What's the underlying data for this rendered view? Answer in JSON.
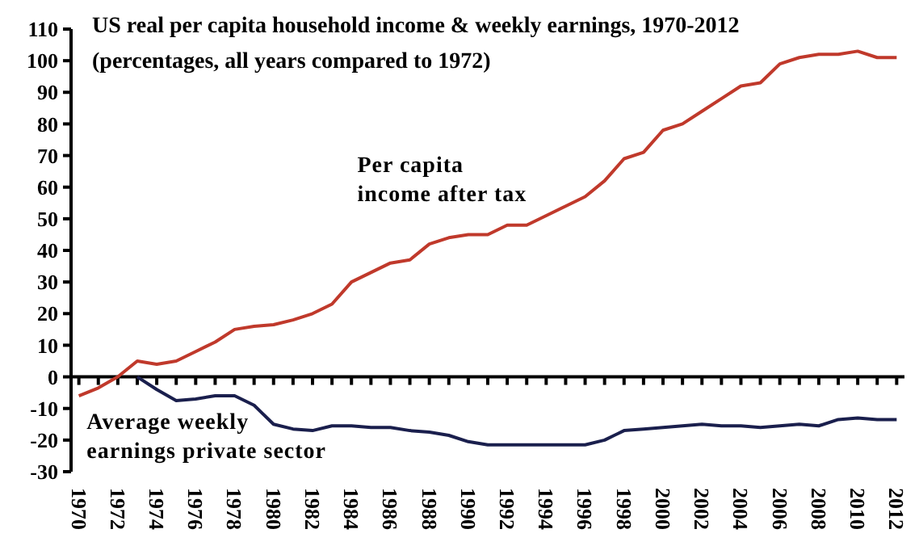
{
  "chart_data": {
    "type": "line",
    "title": "US real per capita household income & weekly earnings, 1970-2012",
    "subtitle": "(percentages, all years compared to 1972)",
    "xlim": [
      1969.6,
      2012.4
    ],
    "xticks": [
      1970,
      {
        "value": 1971,
        "label": null
      },
      1972,
      {
        "value": 1973,
        "label": null
      },
      1974,
      {
        "value": 1975,
        "label": null
      },
      1976,
      {
        "value": 1977,
        "label": null
      },
      1978,
      {
        "value": 1979,
        "label": null
      },
      1980,
      {
        "value": 1981,
        "label": null
      },
      1982,
      {
        "value": 1983,
        "label": null
      },
      1984,
      {
        "value": 1985,
        "label": null
      },
      1986,
      {
        "value": 1987,
        "label": null
      },
      1988,
      {
        "value": 1989,
        "label": null
      },
      1990,
      {
        "value": 1991,
        "label": null
      },
      1992,
      {
        "value": 1993,
        "label": null
      },
      1994,
      {
        "value": 1995,
        "label": null
      },
      1996,
      {
        "value": 1997,
        "label": null
      },
      1998,
      {
        "value": 1999,
        "label": null
      },
      2000,
      {
        "value": 2001,
        "label": null
      },
      2002,
      {
        "value": 2003,
        "label": null
      },
      2004,
      {
        "value": 2005,
        "label": null
      },
      2006,
      {
        "value": 2007,
        "label": null
      },
      2008,
      {
        "value": 2009,
        "label": null
      },
      2010,
      {
        "value": 2011,
        "label": null
      },
      2012
    ],
    "ylim": [
      -30,
      110
    ],
    "yticks": [
      -30,
      -20,
      -10,
      0,
      10,
      20,
      30,
      40,
      50,
      60,
      70,
      80,
      90,
      100,
      110
    ],
    "line_style": "solid",
    "series": [
      {
        "name": "Per capita income after tax",
        "color": "#c0392b",
        "x": [
          1970,
          1971,
          1972,
          1973,
          1974,
          1975,
          1976,
          1977,
          1978,
          1979,
          1980,
          1981,
          1982,
          1983,
          1984,
          1985,
          1986,
          1987,
          1988,
          1989,
          1990,
          1991,
          1992,
          1993,
          1994,
          1995,
          1996,
          1997,
          1998,
          1999,
          2000,
          2001,
          2002,
          2003,
          2004,
          2005,
          2006,
          2007,
          2008,
          2009,
          2010,
          2011,
          2012
        ],
        "values": [
          -6,
          -3.5,
          0,
          5,
          4,
          5,
          8,
          11,
          15,
          16,
          16.5,
          18,
          20,
          23,
          30,
          33,
          36,
          37,
          42,
          44,
          45,
          45,
          48,
          48,
          51,
          54,
          57,
          62,
          69,
          71,
          78,
          80,
          84,
          88,
          92,
          93,
          99,
          101,
          102,
          102,
          103,
          101,
          101
        ]
      },
      {
        "name": "Average weekly earnings private sector",
        "color": "#1a1f4d",
        "x": [
          1973,
          1974,
          1975,
          1976,
          1977,
          1978,
          1979,
          1980,
          1981,
          1982,
          1983,
          1984,
          1985,
          1986,
          1987,
          1988,
          1989,
          1990,
          1991,
          1992,
          1993,
          1994,
          1995,
          1996,
          1997,
          1998,
          1999,
          2000,
          2001,
          2002,
          2003,
          2004,
          2005,
          2006,
          2007,
          2008,
          2009,
          2010,
          2011,
          2012
        ],
        "values": [
          0,
          -4,
          -7.5,
          -7,
          -6,
          -6,
          -9,
          -15,
          -16.5,
          -17,
          -15.5,
          -15.5,
          -16,
          -16,
          -17,
          -17.5,
          -18.5,
          -20.5,
          -21.5,
          -21.5,
          -21.5,
          -21.5,
          -21.5,
          -21.5,
          -20,
          -17,
          -16.5,
          -16,
          -15.5,
          -15,
          -15.5,
          -15.5,
          -16,
          -15.5,
          -15,
          -15.5,
          -13.5,
          -13,
          -13.5,
          -13.5
        ]
      }
    ]
  }
}
